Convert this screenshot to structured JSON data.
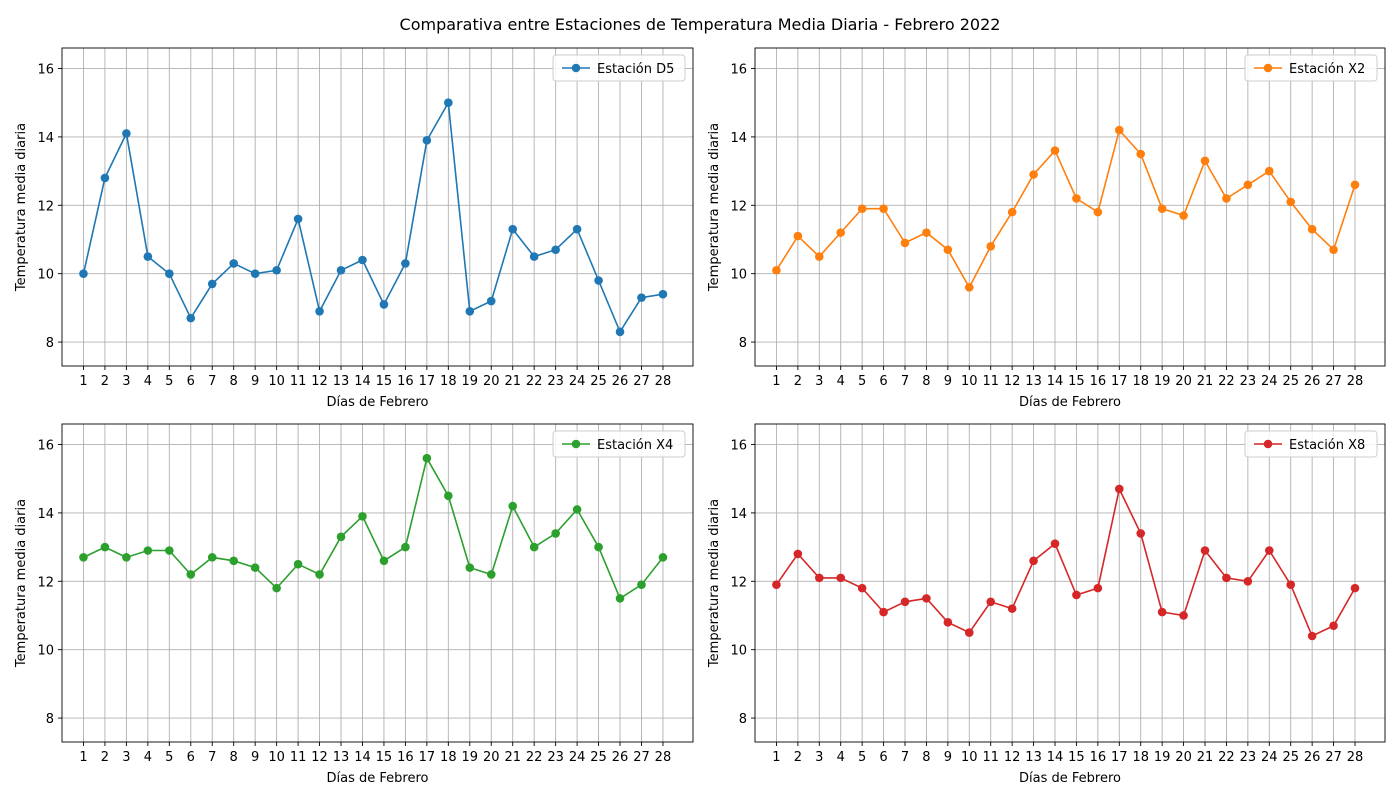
{
  "title": "Comparativa entre Estaciones de Temperatura Media Diaria - Febrero 2022",
  "chart_data": [
    {
      "type": "line",
      "title": "",
      "xlabel": "Días de Febrero",
      "ylabel": "Temperatura media diaria",
      "x": [
        1,
        2,
        3,
        4,
        5,
        6,
        7,
        8,
        9,
        10,
        11,
        12,
        13,
        14,
        15,
        16,
        17,
        18,
        19,
        20,
        21,
        22,
        23,
        24,
        25,
        26,
        27,
        28
      ],
      "ylim": [
        7.3,
        16.6
      ],
      "yticks": [
        8,
        10,
        12,
        14,
        16
      ],
      "grid": true,
      "legend": "top-right",
      "series": [
        {
          "name": "Estación D5",
          "color": "#1f77b4",
          "values": [
            10.0,
            12.8,
            14.1,
            10.5,
            10.0,
            8.7,
            9.7,
            10.3,
            10.0,
            10.1,
            11.6,
            8.9,
            10.1,
            10.4,
            9.1,
            10.3,
            13.9,
            15.0,
            8.9,
            9.2,
            11.3,
            10.5,
            10.7,
            11.3,
            9.8,
            8.3,
            9.3,
            9.4
          ]
        }
      ]
    },
    {
      "type": "line",
      "title": "",
      "xlabel": "Días de Febrero",
      "ylabel": "Temperatura media diaria",
      "x": [
        1,
        2,
        3,
        4,
        5,
        6,
        7,
        8,
        9,
        10,
        11,
        12,
        13,
        14,
        15,
        16,
        17,
        18,
        19,
        20,
        21,
        22,
        23,
        24,
        25,
        26,
        27,
        28
      ],
      "ylim": [
        7.3,
        16.6
      ],
      "yticks": [
        8,
        10,
        12,
        14,
        16
      ],
      "grid": true,
      "legend": "top-right",
      "series": [
        {
          "name": "Estación X2",
          "color": "#ff7f0e",
          "values": [
            10.1,
            11.1,
            10.5,
            11.2,
            11.9,
            11.9,
            10.9,
            11.2,
            10.7,
            9.6,
            10.8,
            11.8,
            12.9,
            13.6,
            12.2,
            11.8,
            14.2,
            13.5,
            11.9,
            11.7,
            13.3,
            12.2,
            12.6,
            13.0,
            12.1,
            11.3,
            10.7,
            12.6
          ]
        }
      ]
    },
    {
      "type": "line",
      "title": "",
      "xlabel": "Días de Febrero",
      "ylabel": "Temperatura media diaria",
      "x": [
        1,
        2,
        3,
        4,
        5,
        6,
        7,
        8,
        9,
        10,
        11,
        12,
        13,
        14,
        15,
        16,
        17,
        18,
        19,
        20,
        21,
        22,
        23,
        24,
        25,
        26,
        27,
        28
      ],
      "ylim": [
        7.3,
        16.6
      ],
      "yticks": [
        8,
        10,
        12,
        14,
        16
      ],
      "grid": true,
      "legend": "top-right",
      "series": [
        {
          "name": "Estación X4",
          "color": "#2ca02c",
          "values": [
            12.7,
            13.0,
            12.7,
            12.9,
            12.9,
            12.2,
            12.7,
            12.6,
            12.4,
            11.8,
            12.5,
            12.2,
            13.3,
            13.9,
            12.6,
            13.0,
            15.6,
            14.5,
            12.4,
            12.2,
            14.2,
            13.0,
            13.4,
            14.1,
            13.0,
            11.5,
            11.9,
            12.7
          ]
        }
      ]
    },
    {
      "type": "line",
      "title": "",
      "xlabel": "Días de Febrero",
      "ylabel": "Temperatura media diaria",
      "x": [
        1,
        2,
        3,
        4,
        5,
        6,
        7,
        8,
        9,
        10,
        11,
        12,
        13,
        14,
        15,
        16,
        17,
        18,
        19,
        20,
        21,
        22,
        23,
        24,
        25,
        26,
        27,
        28
      ],
      "ylim": [
        7.3,
        16.6
      ],
      "yticks": [
        8,
        10,
        12,
        14,
        16
      ],
      "grid": true,
      "legend": "top-right",
      "series": [
        {
          "name": "Estación X8",
          "color": "#d62728",
          "values": [
            11.9,
            12.8,
            12.1,
            12.1,
            11.8,
            11.1,
            11.4,
            11.5,
            10.8,
            10.5,
            11.4,
            11.2,
            12.6,
            13.1,
            11.6,
            11.8,
            14.7,
            13.4,
            11.1,
            11.0,
            12.9,
            12.1,
            12.0,
            12.9,
            11.9,
            10.4,
            10.7,
            11.8
          ]
        }
      ]
    }
  ]
}
